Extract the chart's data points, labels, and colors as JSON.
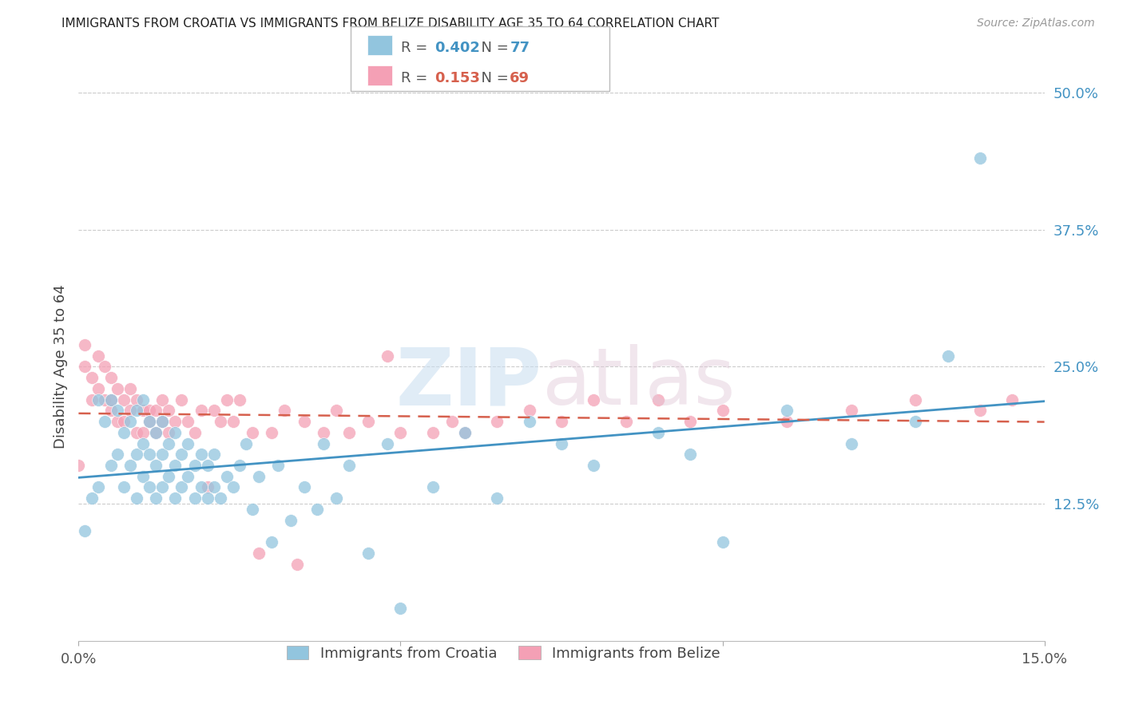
{
  "title": "IMMIGRANTS FROM CROATIA VS IMMIGRANTS FROM BELIZE DISABILITY AGE 35 TO 64 CORRELATION CHART",
  "source": "Source: ZipAtlas.com",
  "ylabel": "Disability Age 35 to 64",
  "xlim": [
    0.0,
    0.15
  ],
  "ylim": [
    0.0,
    0.5
  ],
  "ytick_labels_right": [
    "12.5%",
    "25.0%",
    "37.5%",
    "50.0%"
  ],
  "yticks_right": [
    0.125,
    0.25,
    0.375,
    0.5
  ],
  "croatia_R": 0.402,
  "croatia_N": 77,
  "belize_R": 0.153,
  "belize_N": 69,
  "croatia_color": "#92c5de",
  "belize_color": "#f4a0b5",
  "croatia_line_color": "#4393c3",
  "belize_line_color": "#d6604d",
  "croatia_x": [
    0.001,
    0.002,
    0.003,
    0.003,
    0.004,
    0.005,
    0.005,
    0.006,
    0.006,
    0.007,
    0.007,
    0.008,
    0.008,
    0.009,
    0.009,
    0.009,
    0.01,
    0.01,
    0.01,
    0.011,
    0.011,
    0.011,
    0.012,
    0.012,
    0.012,
    0.013,
    0.013,
    0.013,
    0.014,
    0.014,
    0.015,
    0.015,
    0.015,
    0.016,
    0.016,
    0.017,
    0.017,
    0.018,
    0.018,
    0.019,
    0.019,
    0.02,
    0.02,
    0.021,
    0.021,
    0.022,
    0.023,
    0.024,
    0.025,
    0.026,
    0.027,
    0.028,
    0.03,
    0.031,
    0.033,
    0.035,
    0.037,
    0.038,
    0.04,
    0.042,
    0.045,
    0.048,
    0.05,
    0.055,
    0.06,
    0.065,
    0.07,
    0.075,
    0.08,
    0.09,
    0.095,
    0.1,
    0.11,
    0.12,
    0.13,
    0.135,
    0.14
  ],
  "croatia_y": [
    0.1,
    0.13,
    0.22,
    0.14,
    0.2,
    0.16,
    0.22,
    0.17,
    0.21,
    0.14,
    0.19,
    0.16,
    0.2,
    0.13,
    0.17,
    0.21,
    0.15,
    0.18,
    0.22,
    0.14,
    0.17,
    0.2,
    0.13,
    0.16,
    0.19,
    0.14,
    0.17,
    0.2,
    0.15,
    0.18,
    0.13,
    0.16,
    0.19,
    0.14,
    0.17,
    0.15,
    0.18,
    0.13,
    0.16,
    0.14,
    0.17,
    0.13,
    0.16,
    0.14,
    0.17,
    0.13,
    0.15,
    0.14,
    0.16,
    0.18,
    0.12,
    0.15,
    0.09,
    0.16,
    0.11,
    0.14,
    0.12,
    0.18,
    0.13,
    0.16,
    0.08,
    0.18,
    0.03,
    0.14,
    0.19,
    0.13,
    0.2,
    0.18,
    0.16,
    0.19,
    0.17,
    0.09,
    0.21,
    0.18,
    0.2,
    0.26,
    0.44
  ],
  "belize_x": [
    0.0,
    0.001,
    0.001,
    0.002,
    0.002,
    0.003,
    0.003,
    0.004,
    0.004,
    0.005,
    0.005,
    0.005,
    0.006,
    0.006,
    0.007,
    0.007,
    0.008,
    0.008,
    0.009,
    0.009,
    0.01,
    0.01,
    0.011,
    0.011,
    0.012,
    0.012,
    0.013,
    0.013,
    0.014,
    0.014,
    0.015,
    0.016,
    0.017,
    0.018,
    0.019,
    0.02,
    0.021,
    0.022,
    0.023,
    0.024,
    0.025,
    0.027,
    0.028,
    0.03,
    0.032,
    0.034,
    0.035,
    0.038,
    0.04,
    0.042,
    0.045,
    0.048,
    0.05,
    0.055,
    0.058,
    0.06,
    0.065,
    0.07,
    0.075,
    0.08,
    0.085,
    0.09,
    0.095,
    0.1,
    0.11,
    0.12,
    0.13,
    0.14,
    0.145
  ],
  "belize_y": [
    0.16,
    0.27,
    0.25,
    0.24,
    0.22,
    0.26,
    0.23,
    0.25,
    0.22,
    0.21,
    0.24,
    0.22,
    0.2,
    0.23,
    0.22,
    0.2,
    0.23,
    0.21,
    0.22,
    0.19,
    0.21,
    0.19,
    0.21,
    0.2,
    0.19,
    0.21,
    0.2,
    0.22,
    0.21,
    0.19,
    0.2,
    0.22,
    0.2,
    0.19,
    0.21,
    0.14,
    0.21,
    0.2,
    0.22,
    0.2,
    0.22,
    0.19,
    0.08,
    0.19,
    0.21,
    0.07,
    0.2,
    0.19,
    0.21,
    0.19,
    0.2,
    0.26,
    0.19,
    0.19,
    0.2,
    0.19,
    0.2,
    0.21,
    0.2,
    0.22,
    0.2,
    0.22,
    0.2,
    0.21,
    0.2,
    0.21,
    0.22,
    0.21,
    0.22
  ]
}
